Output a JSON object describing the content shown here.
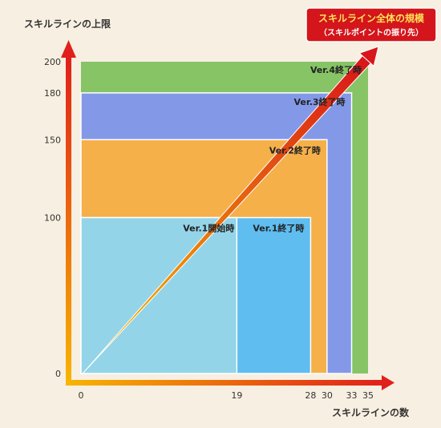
{
  "chart_data": {
    "type": "area",
    "ylabel": "スキルラインの上限",
    "xlabel": "スキルラインの数",
    "x_ticks": [
      0,
      19,
      28,
      30,
      33,
      35
    ],
    "y_ticks": [
      0,
      100,
      150,
      180,
      200
    ],
    "xlim": [
      0,
      35
    ],
    "ylim": [
      0,
      200
    ],
    "regions": [
      {
        "name": "Ver.4終了時",
        "x": 35,
        "y": 200,
        "color": "#86c465"
      },
      {
        "name": "Ver.3終了時",
        "x": 33,
        "y": 180,
        "color": "#8399e8"
      },
      {
        "name": "Ver.2終了時",
        "x": 30,
        "y": 150,
        "color": "#f5b04a"
      },
      {
        "name": "Ver.1終了時",
        "x": 28,
        "y": 100,
        "color": "#5fbdf0"
      },
      {
        "name": "Ver.1開始時",
        "x": 19,
        "y": 100,
        "color": "#94d4e8"
      }
    ],
    "callout": {
      "line1": "スキルライン全体の規模",
      "line2": "（スキルポイントの振り先）"
    }
  }
}
